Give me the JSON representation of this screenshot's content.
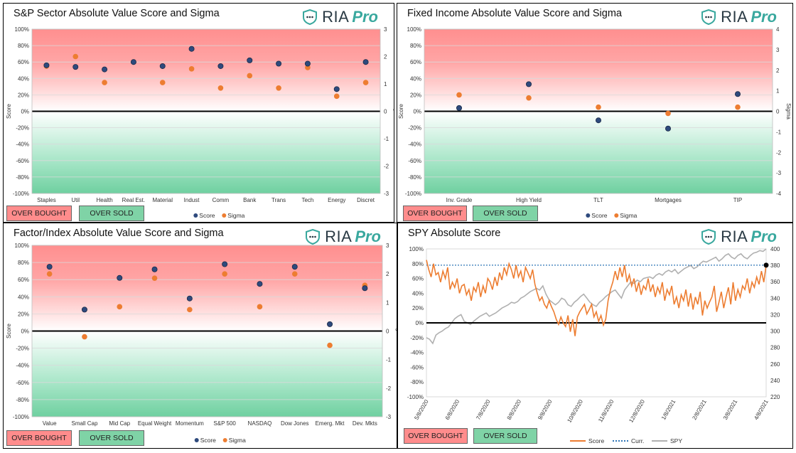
{
  "logo": {
    "ria": "RIA",
    "pro": "Pro"
  },
  "buttons": {
    "overbought": "OVER BOUGHT",
    "oversold": "OVER SOLD"
  },
  "chart_data": [
    {
      "id": "p1",
      "type": "scatter",
      "title": "S&P Sector Absolute Value Score and Sigma",
      "ylabel": "Score",
      "y2label": "Sigma",
      "ylim": [
        -100,
        100
      ],
      "y2lim": [
        -3,
        3
      ],
      "categories": [
        "Staples",
        "Util",
        "Health",
        "Real Est.",
        "Material",
        "Indust",
        "Comm",
        "Bank",
        "Trans",
        "Tech",
        "Energy",
        "Discret"
      ],
      "series": [
        {
          "name": "Score",
          "axis": "left",
          "color": "#2e4a7d",
          "values": [
            56,
            54,
            51,
            60,
            55,
            76,
            55,
            62,
            58,
            58,
            27,
            60
          ]
        },
        {
          "name": "Sigma",
          "axis": "right",
          "color": "#ed7d31",
          "values": [
            1.65,
            2.0,
            1.05,
            1.8,
            1.05,
            1.55,
            0.85,
            1.3,
            0.85,
            1.6,
            0.55,
            1.05
          ]
        }
      ],
      "yticks": [
        "100%",
        "80%",
        "60%",
        "40%",
        "20%",
        "0%",
        "-20%",
        "-40%",
        "-60%",
        "-80%",
        "-100%"
      ],
      "y2ticks": [
        "3",
        "2",
        "1",
        "0",
        "-1",
        "-2",
        "-3"
      ]
    },
    {
      "id": "p2",
      "type": "scatter",
      "title": "Fixed Income Absolute Value Score and Sigma",
      "ylabel": "Score",
      "y2label": "Sigma",
      "ylim": [
        -100,
        100
      ],
      "y2lim": [
        -4,
        4
      ],
      "categories": [
        "Inv. Grade",
        "High Yield",
        "TLT",
        "Mortgages",
        "TIP"
      ],
      "series": [
        {
          "name": "Score",
          "axis": "left",
          "color": "#2e4a7d",
          "values": [
            4,
            33,
            -11,
            -21,
            21
          ]
        },
        {
          "name": "Sigma",
          "axis": "right",
          "color": "#ed7d31",
          "values": [
            0.8,
            0.65,
            0.2,
            -0.1,
            0.2
          ]
        }
      ],
      "yticks": [
        "100%",
        "80%",
        "60%",
        "40%",
        "20%",
        "0%",
        "-20%",
        "-40%",
        "-60%",
        "-80%",
        "-100%"
      ],
      "y2ticks": [
        "4",
        "3",
        "2",
        "1",
        "0",
        "-1",
        "-2",
        "-3",
        "-4"
      ]
    },
    {
      "id": "p3",
      "type": "scatter",
      "title": "Factor/Index Absolute Value Score and Sigma",
      "ylabel": "Score",
      "y2label": "Sigma",
      "ylim": [
        -100,
        100
      ],
      "y2lim": [
        -3,
        3
      ],
      "categories": [
        "Value",
        "Small Cap",
        "Mid Cap",
        "Equal Weight",
        "Momentum",
        "S&P 500",
        "NASDAQ",
        "Dow Jones",
        "Emerg. Mkt",
        "Dev. Mkts"
      ],
      "series": [
        {
          "name": "Score",
          "axis": "left",
          "color": "#2e4a7d",
          "values": [
            75,
            25,
            62,
            72,
            38,
            78,
            55,
            75,
            8,
            50
          ]
        },
        {
          "name": "Sigma",
          "axis": "right",
          "color": "#ed7d31",
          "values": [
            2.0,
            -0.2,
            0.85,
            1.85,
            0.75,
            2.0,
            0.85,
            2.0,
            -0.5,
            1.6
          ]
        }
      ],
      "yticks": [
        "100%",
        "80%",
        "60%",
        "40%",
        "20%",
        "0%",
        "-20%",
        "-40%",
        "-60%",
        "-80%",
        "-100%"
      ],
      "y2ticks": [
        "3",
        "2",
        "1",
        "0",
        "-1",
        "-2",
        "-3"
      ]
    },
    {
      "id": "p4",
      "type": "line",
      "title": "SPY Absolute Score",
      "ylim": [
        -100,
        100
      ],
      "y2lim": [
        220,
        400
      ],
      "xticks": [
        "5/8/2020",
        "6/8/2020",
        "7/8/2020",
        "8/8/2020",
        "9/8/2020",
        "10/8/2020",
        "11/8/2020",
        "12/8/2020",
        "1/8/2021",
        "2/8/2021",
        "3/8/2021",
        "4/8/2021"
      ],
      "yticks": [
        "100%",
        "80%",
        "60%",
        "40%",
        "20%",
        "0%",
        "-20%",
        "-40%",
        "-60%",
        "-80%",
        "-100%"
      ],
      "y2ticks": [
        "400",
        "380",
        "360",
        "340",
        "320",
        "300",
        "280",
        "260",
        "240",
        "220"
      ],
      "current": 78,
      "series": [
        {
          "name": "Score",
          "axis": "left",
          "color": "#ed7d31",
          "style": "solid",
          "values": [
            85,
            72,
            62,
            80,
            65,
            68,
            55,
            70,
            60,
            75,
            45,
            55,
            48,
            60,
            40,
            50,
            52,
            38,
            45,
            30,
            48,
            42,
            55,
            35,
            50,
            40,
            60,
            55,
            45,
            62,
            50,
            68,
            58,
            75,
            65,
            80,
            72,
            60,
            78,
            62,
            70,
            55,
            75,
            68,
            60,
            72,
            52,
            40,
            30,
            35,
            25,
            20,
            30,
            22,
            15,
            5,
            -2,
            8,
            0,
            -5,
            10,
            -12,
            5,
            -18,
            8,
            15,
            20,
            25,
            12,
            18,
            25,
            8,
            15,
            2,
            10,
            -3,
            5,
            30,
            45,
            55,
            70,
            58,
            75,
            62,
            78,
            55,
            65,
            50,
            60,
            42,
            55,
            38,
            50,
            45,
            60,
            42,
            52,
            35,
            48,
            40,
            55,
            30,
            45,
            38,
            50,
            25,
            35,
            20,
            38,
            30,
            45,
            22,
            40,
            18,
            35,
            25,
            42,
            10,
            30,
            20,
            28,
            35,
            50,
            15,
            28,
            42,
            20,
            35,
            48,
            25,
            55,
            30,
            45,
            35,
            50,
            45,
            60,
            40,
            55,
            48,
            62,
            52,
            70,
            55,
            78
          ]
        },
        {
          "name": "Curr.",
          "axis": "left",
          "color": "#2e75b6",
          "style": "dotted",
          "values": [
            78
          ]
        },
        {
          "name": "SPY",
          "axis": "right",
          "color": "#b0b0b0",
          "style": "solid",
          "values": [
            292,
            290,
            285,
            295,
            298,
            300,
            303,
            305,
            310,
            315,
            318,
            320,
            312,
            310,
            308,
            312,
            315,
            318,
            320,
            322,
            318,
            320,
            322,
            325,
            328,
            330,
            332,
            335,
            334,
            336,
            340,
            342,
            345,
            348,
            350,
            352,
            350,
            355,
            345,
            338,
            335,
            332,
            335,
            340,
            338,
            332,
            330,
            335,
            338,
            342,
            345,
            340,
            335,
            332,
            330,
            335,
            338,
            342,
            345,
            348,
            350,
            345,
            340,
            350,
            355,
            360,
            358,
            362,
            360,
            364,
            365,
            366,
            364,
            368,
            370,
            368,
            372,
            374,
            372,
            375,
            370,
            373,
            376,
            378,
            380,
            376,
            378,
            382,
            385,
            384,
            386,
            388,
            390,
            385,
            388,
            392,
            394,
            390,
            388,
            392,
            394,
            390,
            388,
            392,
            395,
            396,
            398,
            397,
            400
          ]
        }
      ],
      "legend": [
        "Score",
        "Curr.",
        "SPY"
      ]
    }
  ]
}
